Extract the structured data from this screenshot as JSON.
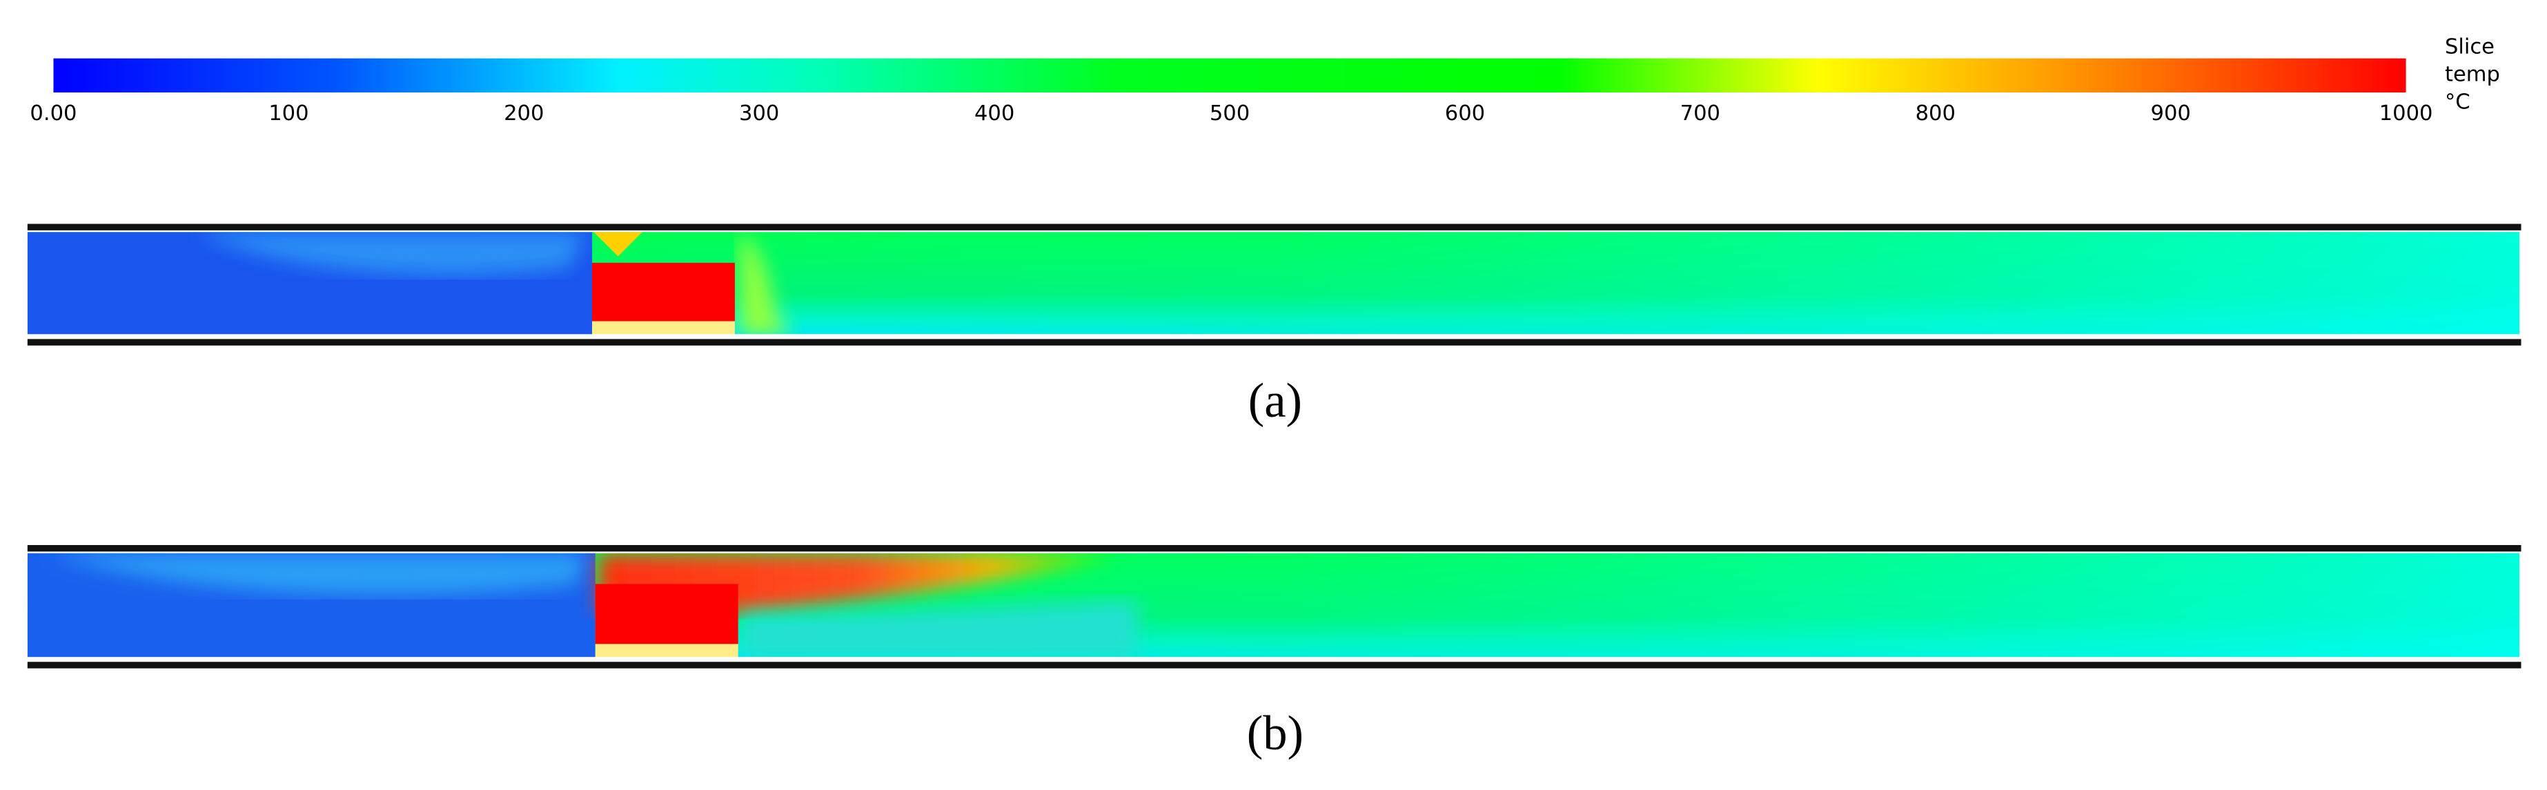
{
  "colorbar": {
    "title_lines": [
      "Slice",
      "temp",
      "°C"
    ],
    "ticks": [
      {
        "value": 0,
        "label": "0.00"
      },
      100,
      200,
      300,
      400,
      500,
      600,
      700,
      800,
      900,
      1000
    ]
  },
  "panels": [
    {
      "label": "(a)"
    },
    {
      "label": "(b)"
    }
  ]
}
